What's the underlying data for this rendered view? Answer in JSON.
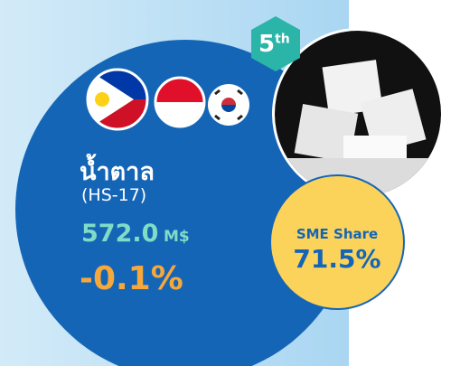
{
  "badge": {
    "rank": "5",
    "suffix": "th"
  },
  "product": {
    "name": "น้ำตาล",
    "code": "(HS-17)",
    "value": "572.0",
    "unit": "M$",
    "change": "-0.1%"
  },
  "sme": {
    "label": "SME Share",
    "value": "71.5%"
  }
}
